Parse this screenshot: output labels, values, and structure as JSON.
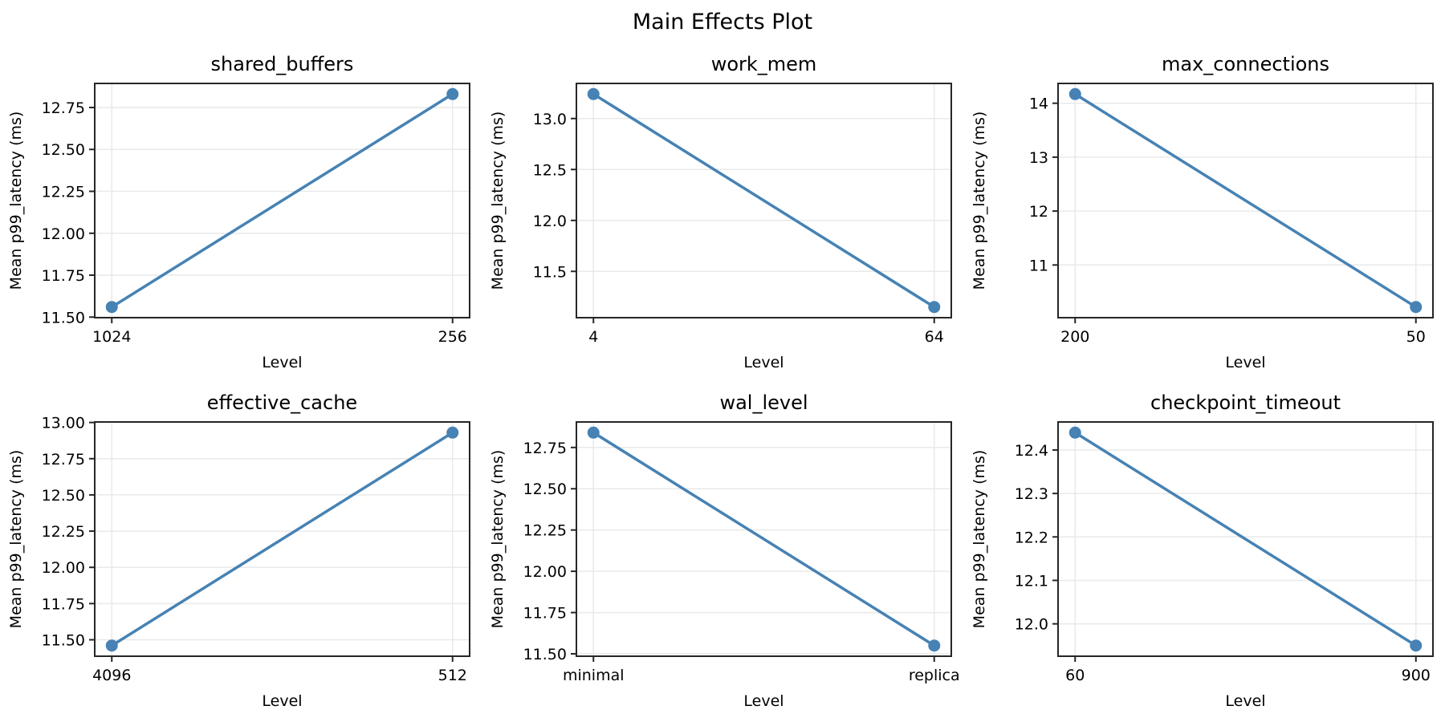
{
  "figure": {
    "title": "Main Effects Plot",
    "background": "#ffffff",
    "colors": {
      "line": "#4682b4",
      "marker": "#4682b4",
      "grid": "#e9e9e9",
      "spine": "#262626",
      "text": "#000000"
    }
  },
  "chart_data": [
    {
      "type": "line",
      "title": "shared_buffers",
      "xlabel": "Level",
      "ylabel": "Mean p99_latency (ms)",
      "categories": [
        "1024",
        "256"
      ],
      "values": [
        11.56,
        12.83
      ],
      "ylim": [
        11.4965,
        12.8935
      ],
      "ytick_values": [
        11.5,
        11.75,
        12.0,
        12.25,
        12.5,
        12.75
      ],
      "ytick_labels": [
        "11.50",
        "11.75",
        "12.00",
        "12.25",
        "12.50",
        "12.75"
      ],
      "grid": true,
      "legend": "none"
    },
    {
      "type": "line",
      "title": "work_mem",
      "xlabel": "Level",
      "ylabel": "Mean p99_latency (ms)",
      "categories": [
        "4",
        "64"
      ],
      "values": [
        13.24,
        11.15
      ],
      "ylim": [
        11.0455,
        13.3445
      ],
      "ytick_values": [
        11.5,
        12.0,
        12.5,
        13.0
      ],
      "ytick_labels": [
        "11.5",
        "12.0",
        "12.5",
        "13.0"
      ],
      "grid": true,
      "legend": "none"
    },
    {
      "type": "line",
      "title": "max_connections",
      "xlabel": "Level",
      "ylabel": "Mean p99_latency (ms)",
      "categories": [
        "200",
        "50"
      ],
      "values": [
        14.17,
        10.22
      ],
      "ylim": [
        10.0225,
        14.3675
      ],
      "ytick_values": [
        11,
        12,
        13,
        14
      ],
      "ytick_labels": [
        "11",
        "12",
        "13",
        "14"
      ],
      "grid": true,
      "legend": "none"
    },
    {
      "type": "line",
      "title": "effective_cache",
      "xlabel": "Level",
      "ylabel": "Mean p99_latency (ms)",
      "categories": [
        "4096",
        "512"
      ],
      "values": [
        11.46,
        12.93
      ],
      "ylim": [
        11.3865,
        13.0035
      ],
      "ytick_values": [
        11.5,
        11.75,
        12.0,
        12.25,
        12.5,
        12.75,
        13.0
      ],
      "ytick_labels": [
        "11.50",
        "11.75",
        "12.00",
        "12.25",
        "12.50",
        "12.75",
        "13.00"
      ],
      "grid": true,
      "legend": "none"
    },
    {
      "type": "line",
      "title": "wal_level",
      "xlabel": "Level",
      "ylabel": "Mean p99_latency (ms)",
      "categories": [
        "minimal",
        "replica"
      ],
      "values": [
        12.84,
        11.55
      ],
      "ylim": [
        11.4855,
        12.9045
      ],
      "ytick_values": [
        11.5,
        11.75,
        12.0,
        12.25,
        12.5,
        12.75
      ],
      "ytick_labels": [
        "11.50",
        "11.75",
        "12.00",
        "12.25",
        "12.50",
        "12.75"
      ],
      "grid": true,
      "legend": "none"
    },
    {
      "type": "line",
      "title": "checkpoint_timeout",
      "xlabel": "Level",
      "ylabel": "Mean p99_latency (ms)",
      "categories": [
        "60",
        "900"
      ],
      "values": [
        12.44,
        11.95
      ],
      "ylim": [
        11.9255,
        12.4645
      ],
      "ytick_values": [
        12.0,
        12.1,
        12.2,
        12.3,
        12.4
      ],
      "ytick_labels": [
        "12.0",
        "12.1",
        "12.2",
        "12.3",
        "12.4"
      ],
      "grid": true,
      "legend": "none"
    }
  ]
}
